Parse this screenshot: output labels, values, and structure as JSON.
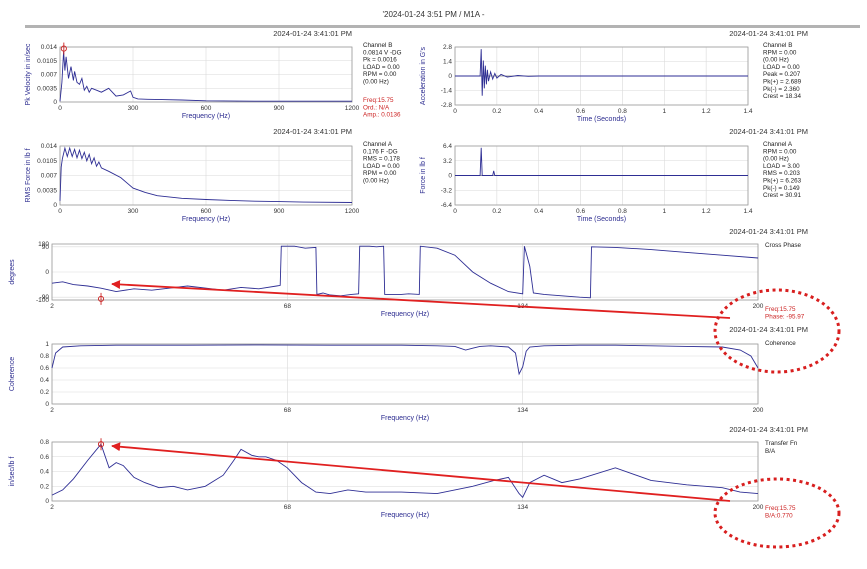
{
  "header": {
    "title": "'2024-01-24 3:51 PM / M1A -"
  },
  "chart_data": [
    {
      "type": "line",
      "id": "p1",
      "timestamp": "2024-01-24 3:41:01 PM",
      "ylabel": "Pk Velocity in in/sec",
      "xlabel": "Frequency (Hz)",
      "xlim": [
        0,
        1200
      ],
      "ylim": [
        0,
        0.014
      ],
      "xticks": [
        "0",
        "300",
        "600",
        "900",
        "1200"
      ],
      "yticks": [
        "0",
        "0.0035",
        "0.007",
        "0.0105",
        "0.014"
      ],
      "x": [
        0,
        8,
        15,
        20,
        25,
        35,
        45,
        55,
        60,
        70,
        80,
        90,
        100,
        110,
        120,
        130,
        150,
        170,
        200,
        230,
        260,
        290,
        300,
        320,
        360,
        420,
        500,
        600,
        800,
        1000,
        1200
      ],
      "y": [
        0.0002,
        0.005,
        0.0128,
        0.008,
        0.0115,
        0.006,
        0.009,
        0.0055,
        0.0078,
        0.005,
        0.0045,
        0.006,
        0.003,
        0.004,
        0.0025,
        0.0035,
        0.003,
        0.0025,
        0.0035,
        0.0015,
        0.0018,
        0.0028,
        0.0012,
        0.0008,
        0.0007,
        0.0006,
        0.0005,
        0.0003,
        0.0002,
        0.0002,
        0.0002
      ],
      "marker": {
        "x": 15.75,
        "y": 0.0136
      },
      "info": [
        "Channel B",
        "0.0814 V -DG",
        "Pk = 0.0016",
        "LOAD = 0.00",
        "RPM = 0.00",
        "(0.00 Hz)"
      ],
      "readout": [
        "Freq:15.75",
        "Ord.: N/A",
        "Amp.: 0.0136"
      ]
    },
    {
      "type": "line",
      "id": "p2",
      "timestamp": "2024-01-24 3:41:01 PM",
      "ylabel": "Acceleration in G's",
      "xlabel": "Time (Seconds)",
      "xlim": [
        0,
        1.4
      ],
      "ylim": [
        -2.8,
        2.8
      ],
      "xticks": [
        "0",
        "0.2",
        "0.4",
        "0.6",
        "0.8",
        "1",
        "1.2",
        "1.4"
      ],
      "yticks": [
        "-2.8",
        "-1.4",
        "0",
        "1.4",
        "2.8"
      ],
      "x": [
        0,
        0.1,
        0.12,
        0.125,
        0.13,
        0.135,
        0.14,
        0.145,
        0.15,
        0.155,
        0.16,
        0.17,
        0.18,
        0.19,
        0.2,
        0.22,
        0.25,
        0.3,
        0.35,
        0.4,
        1.4
      ],
      "y": [
        0,
        0,
        0,
        2.6,
        -1.9,
        1.5,
        -1.2,
        1.0,
        -0.8,
        0.6,
        -0.5,
        0.4,
        -0.3,
        0.25,
        -0.2,
        0.15,
        -0.1,
        0.05,
        -0.03,
        0,
        0
      ],
      "info": [
        "Channel B",
        "RPM = 0.00",
        "(0.00 Hz)",
        "LOAD = 0.00",
        "Peak = 0.207",
        "Pk(+) = 2.689",
        "Pk(-) = 2.360",
        "Crest = 18.34"
      ]
    },
    {
      "type": "line",
      "id": "p3",
      "timestamp": "2024-01-24 3:41:01 PM",
      "ylabel": "RMS Force in lb f",
      "xlabel": "Frequency (Hz)",
      "xlim": [
        0,
        1200
      ],
      "ylim": [
        0,
        0.014
      ],
      "xticks": [
        "0",
        "300",
        "600",
        "900",
        "1200"
      ],
      "yticks": [
        "0",
        "0.0035",
        "0.007",
        "0.0105",
        "0.014"
      ],
      "x": [
        0,
        5,
        10,
        20,
        30,
        40,
        50,
        60,
        70,
        80,
        90,
        100,
        110,
        120,
        130,
        140,
        150,
        160,
        170,
        200,
        250,
        300,
        350,
        400,
        500,
        600,
        700,
        800,
        900,
        1000,
        1200
      ],
      "y": [
        0.001,
        0.009,
        0.011,
        0.0135,
        0.0115,
        0.0135,
        0.0115,
        0.0132,
        0.0112,
        0.013,
        0.011,
        0.0125,
        0.0105,
        0.012,
        0.0098,
        0.0112,
        0.0092,
        0.0102,
        0.0088,
        0.008,
        0.0065,
        0.004,
        0.003,
        0.0022,
        0.0016,
        0.0013,
        0.0011,
        0.0009,
        0.0008,
        0.0007,
        0.0006
      ],
      "info": [
        "Channel A",
        "0.176 F -DG",
        "RMS = 0.178",
        "LOAD = 0.00",
        "RPM = 0.00",
        "(0.00 Hz)"
      ]
    },
    {
      "type": "line",
      "id": "p4",
      "timestamp": "2024-01-24 3:41:01 PM",
      "ylabel": "Force in lb f",
      "xlabel": "Time (Seconds)",
      "xlim": [
        0,
        1.4
      ],
      "ylim": [
        -6.4,
        6.4
      ],
      "xticks": [
        "0",
        "0.2",
        "0.4",
        "0.6",
        "0.8",
        "1",
        "1.2",
        "1.4"
      ],
      "yticks": [
        "-6.4",
        "-3.2",
        "0",
        "3.2",
        "6.4"
      ],
      "x": [
        0,
        0.12,
        0.125,
        0.13,
        0.135,
        0.18,
        0.185,
        0.19,
        1.4
      ],
      "y": [
        0,
        0,
        6.0,
        0,
        0,
        0,
        1.0,
        0,
        0
      ],
      "info": [
        "Channel A",
        "RPM = 0.00",
        "(0.00 Hz)",
        "LOAD = 3.00",
        "RMS = 0.203",
        "Pk(+) = 6.263",
        "Pk(-) = 0.149",
        "Crest = 30.91"
      ]
    },
    {
      "type": "line",
      "id": "p5",
      "timestamp": "2024-01-24 3:41:01 PM",
      "title": "Cross Phase",
      "ylabel": "degrees",
      "xlabel": "Frequency (Hz)",
      "xlim": [
        2,
        200
      ],
      "ylim": [
        -100,
        100
      ],
      "xticks": [
        "2",
        "68",
        "134",
        "200"
      ],
      "yticks": [
        "-100",
        "-90",
        "0",
        "90",
        "180"
      ],
      "x": [
        2,
        5,
        8,
        12,
        15.75,
        20,
        25,
        30,
        40,
        50,
        55,
        60,
        65,
        66,
        66.3,
        70,
        73,
        76,
        76.3,
        78,
        80,
        83,
        86,
        88,
        88.3,
        91,
        93,
        95,
        95.3,
        100,
        102,
        105,
        105.3,
        110,
        115,
        120,
        125,
        130,
        134,
        134.5,
        136,
        137,
        140,
        145,
        150,
        153,
        153.3,
        160,
        170,
        180,
        190,
        200
      ],
      "y": [
        -40,
        -35,
        -45,
        -50,
        -58,
        -70,
        -60,
        -65,
        -50,
        -65,
        -55,
        -60,
        -50,
        -48,
        92,
        92,
        85,
        88,
        -80,
        -75,
        -82,
        -85,
        -80,
        -78,
        92,
        92,
        90,
        92,
        -80,
        -80,
        -78,
        -80,
        92,
        85,
        60,
        0,
        -40,
        -70,
        -78,
        92,
        20,
        -75,
        -80,
        -85,
        -90,
        -92,
        90,
        88,
        80,
        70,
        60,
        50
      ],
      "marker": {
        "x": 15.75,
        "y": -95.97
      },
      "readout": [
        "Freq:15.75",
        "Phase: -95.97"
      ]
    },
    {
      "type": "line",
      "id": "p6",
      "timestamp": "2024-01-24 3:41:01 PM",
      "title": "Coherence",
      "ylabel": "Coherence",
      "xlabel": "Frequency (Hz)",
      "xlim": [
        2,
        200
      ],
      "ylim": [
        0,
        1
      ],
      "xticks": [
        "2",
        "68",
        "134",
        "200"
      ],
      "yticks": [
        "0",
        "0.2",
        "0.4",
        "0.6",
        "0.8",
        "1"
      ],
      "x": [
        2,
        3,
        5,
        10,
        20,
        40,
        60,
        80,
        100,
        110,
        115,
        118,
        120,
        122,
        125,
        130,
        132,
        133,
        134,
        135,
        136,
        140,
        150,
        160,
        170,
        180,
        190,
        195,
        198,
        200
      ],
      "y": [
        0.6,
        0.85,
        0.95,
        0.97,
        0.98,
        0.98,
        0.985,
        0.98,
        0.98,
        0.97,
        0.96,
        0.9,
        0.93,
        0.96,
        0.97,
        0.95,
        0.85,
        0.5,
        0.62,
        0.88,
        0.95,
        0.97,
        0.98,
        0.98,
        0.97,
        0.96,
        0.95,
        0.9,
        0.8,
        0.6
      ]
    },
    {
      "type": "line",
      "id": "p7",
      "timestamp": "2024-01-24 3:41:01 PM",
      "title": "Transfer Fn",
      "subtitle": "B/A",
      "ylabel": "in/sec/lb f",
      "xlabel": "Frequency (Hz)",
      "xlim": [
        2,
        200
      ],
      "ylim": [
        0,
        0.8
      ],
      "xticks": [
        "2",
        "68",
        "134",
        "200"
      ],
      "yticks": [
        "0",
        "0.2",
        "0.4",
        "0.6",
        "0.8"
      ],
      "x": [
        2,
        5,
        8,
        12,
        15.75,
        18,
        20,
        22,
        25,
        28,
        32,
        36,
        40,
        45,
        50,
        53,
        55,
        58,
        60,
        62,
        65,
        68,
        72,
        76,
        80,
        85,
        90,
        100,
        110,
        120,
        126,
        130,
        133,
        134,
        136,
        140,
        145,
        150,
        160,
        170,
        180,
        190,
        195,
        200
      ],
      "y": [
        0.08,
        0.15,
        0.3,
        0.55,
        0.77,
        0.45,
        0.52,
        0.48,
        0.32,
        0.25,
        0.18,
        0.2,
        0.15,
        0.2,
        0.35,
        0.55,
        0.7,
        0.62,
        0.6,
        0.6,
        0.55,
        0.45,
        0.25,
        0.12,
        0.1,
        0.15,
        0.12,
        0.12,
        0.1,
        0.2,
        0.28,
        0.32,
        0.1,
        0.05,
        0.25,
        0.35,
        0.25,
        0.3,
        0.45,
        0.28,
        0.22,
        0.18,
        0.12,
        0.1
      ],
      "marker": {
        "x": 15.75,
        "y": 0.77
      },
      "readout": [
        "Freq:15.75",
        "B/A:0.770"
      ]
    }
  ]
}
